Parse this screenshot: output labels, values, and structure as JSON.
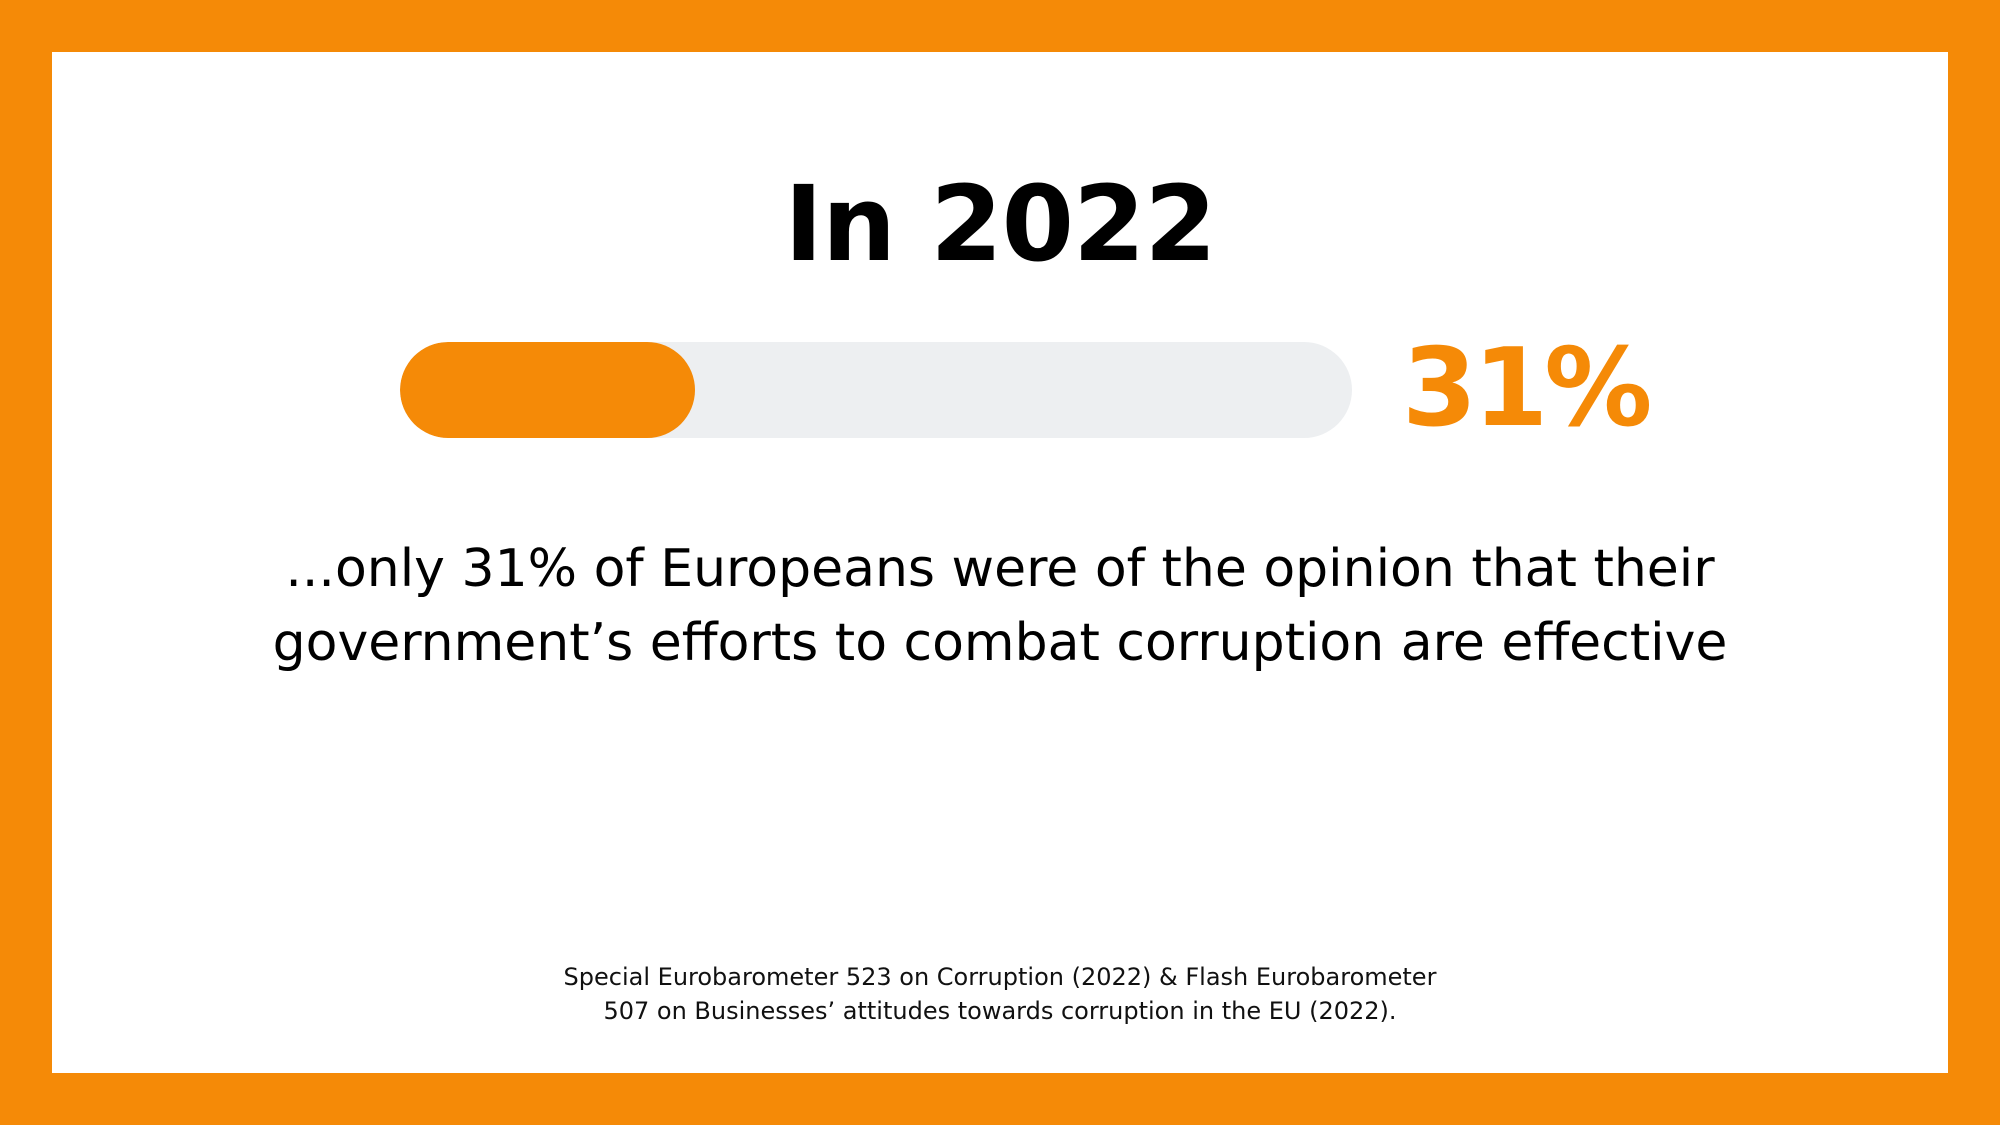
{
  "headline": "In 2022",
  "progress": {
    "value_percent": 31,
    "label": "31%",
    "fill_color": "#F58A07",
    "track_color": "#EDEFF1"
  },
  "statement": {
    "line1": "...only 31% of Europeans were of the opinion that their",
    "line2": "government’s efforts to combat corruption are effective"
  },
  "source": {
    "line1": "Special Eurobarometer 523 on Corruption (2022) & Flash Eurobarometer",
    "line2": "507 on Businesses’ attitudes towards corruption in the EU (2022)."
  },
  "colors": {
    "border": "#F58A07",
    "background": "#FFFFFF",
    "accent": "#F58A07"
  }
}
